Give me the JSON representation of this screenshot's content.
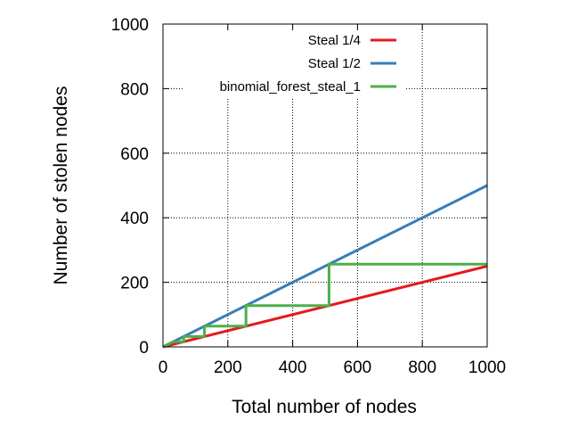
{
  "chart_data": {
    "type": "line",
    "xlabel": "Total number of nodes",
    "ylabel": "Number of stolen nodes",
    "xlim": [
      0,
      1000
    ],
    "ylim": [
      0,
      1000
    ],
    "xticks": [
      0,
      200,
      400,
      600,
      800,
      1000
    ],
    "yticks": [
      0,
      200,
      400,
      600,
      800,
      1000
    ],
    "grid": true,
    "grid_style": "dotted",
    "legend_position": "top-right",
    "series": [
      {
        "name": "Steal 1/4",
        "color": "#e41a1c",
        "x": [
          0,
          1000
        ],
        "y": [
          0,
          250
        ]
      },
      {
        "name": "Steal 1/2",
        "color": "#377eb8",
        "x": [
          0,
          1000
        ],
        "y": [
          0,
          500
        ]
      },
      {
        "name": "binomial_forest_steal_1",
        "color": "#4daf4a",
        "x": [
          0,
          32,
          32,
          64,
          64,
          128,
          128,
          256,
          256,
          512,
          512,
          1000
        ],
        "y": [
          0,
          16,
          16,
          32,
          32,
          64,
          64,
          128,
          128,
          256,
          256,
          256
        ],
        "step_points": [
          [
            0,
            0
          ],
          [
            32,
            16
          ],
          [
            64,
            16
          ],
          [
            64,
            32
          ],
          [
            128,
            32
          ],
          [
            128,
            64
          ],
          [
            256,
            64
          ],
          [
            256,
            128
          ],
          [
            512,
            128
          ],
          [
            512,
            256
          ],
          [
            1000,
            256
          ]
        ]
      }
    ]
  }
}
